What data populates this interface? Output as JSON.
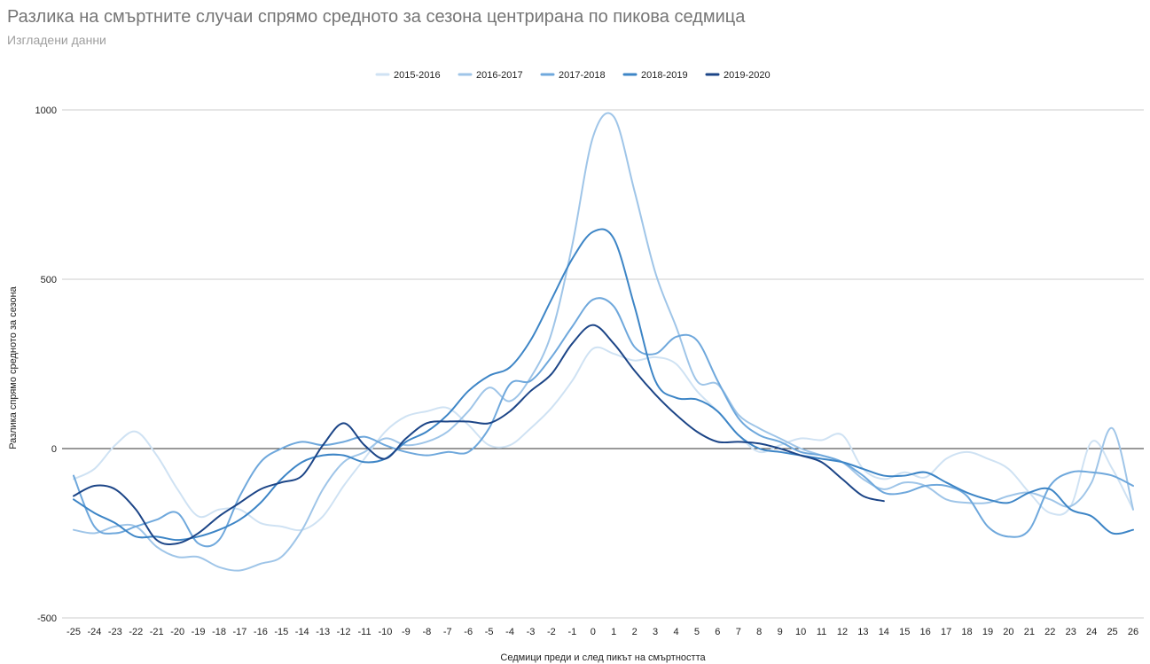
{
  "chart_data": {
    "type": "line",
    "title": "Разлика на смъртните случаи спрямо средното за сезона центрирана по пикова седмица",
    "subtitle": "Изгладени данни",
    "xlabel": "Седмици преди и след пикът на смъртността",
    "ylabel": "Разлика спрямо средното за сезона",
    "ylim": [
      -500,
      1000
    ],
    "yticks": [
      -500,
      0,
      500,
      1000
    ],
    "legend_position": "top",
    "smooth": true,
    "grid": true,
    "categories": [
      "-25",
      "-24",
      "-23",
      "-22",
      "-21",
      "-20",
      "-19",
      "-18",
      "-17",
      "-16",
      "-15",
      "-14",
      "-13",
      "-12",
      "-11",
      "-10",
      "-9",
      "-8",
      "-7",
      "-6",
      "-5",
      "-4",
      "-3",
      "-2",
      "-1",
      "0",
      "1",
      "2",
      "3",
      "4",
      "5",
      "6",
      "7",
      "8",
      "9",
      "10",
      "11",
      "12",
      "13",
      "14",
      "15",
      "16",
      "17",
      "18",
      "19",
      "20",
      "21",
      "22",
      "23",
      "24",
      "25",
      "26"
    ],
    "series": [
      {
        "name": "2015-2016",
        "color": "#cfe2f3",
        "values": [
          -90,
          -60,
          10,
          50,
          -20,
          -120,
          -200,
          -180,
          -180,
          -220,
          -230,
          -240,
          -200,
          -110,
          -30,
          50,
          95,
          110,
          120,
          70,
          10,
          10,
          60,
          120,
          200,
          295,
          280,
          260,
          270,
          250,
          170,
          110,
          40,
          -10,
          10,
          30,
          25,
          40,
          -60,
          -90,
          -70,
          -85,
          -30,
          -10,
          -30,
          -60,
          -130,
          -190,
          -170,
          20,
          -60,
          -180
        ]
      },
      {
        "name": "2016-2017",
        "color": "#9fc5e8",
        "values": [
          -240,
          -250,
          -230,
          -230,
          -290,
          -320,
          -320,
          -350,
          -360,
          -340,
          -320,
          -240,
          -120,
          -40,
          -10,
          30,
          10,
          20,
          50,
          110,
          180,
          140,
          210,
          340,
          600,
          920,
          980,
          760,
          520,
          360,
          200,
          190,
          100,
          60,
          30,
          0,
          -20,
          -40,
          -90,
          -120,
          -100,
          -110,
          -150,
          -160,
          -160,
          -140,
          -130,
          -150,
          -170,
          -100,
          60,
          -180
        ]
      },
      {
        "name": "2017-2018",
        "color": "#6fa8dc",
        "values": [
          -80,
          -230,
          -250,
          -230,
          -210,
          -190,
          -280,
          -270,
          -140,
          -40,
          0,
          20,
          10,
          20,
          35,
          10,
          -10,
          -20,
          -10,
          -10,
          60,
          190,
          200,
          270,
          360,
          440,
          420,
          300,
          280,
          330,
          320,
          200,
          90,
          40,
          20,
          -10,
          -20,
          -40,
          -80,
          -130,
          -130,
          -110,
          -110,
          -140,
          -230,
          -260,
          -240,
          -110,
          -70,
          -70,
          -80,
          -110
        ]
      },
      {
        "name": "2018-2019",
        "color": "#3d85c6",
        "values": [
          -150,
          -190,
          -220,
          -260,
          -260,
          -270,
          -260,
          -240,
          -210,
          -160,
          -90,
          -40,
          -20,
          -20,
          -40,
          -30,
          20,
          50,
          100,
          170,
          215,
          240,
          320,
          440,
          560,
          640,
          620,
          420,
          200,
          150,
          145,
          110,
          40,
          0,
          -10,
          -20,
          -30,
          -40,
          -60,
          -80,
          -80,
          -70,
          -100,
          -130,
          -150,
          -160,
          -130,
          -120,
          -180,
          -200,
          -250,
          -240
        ]
      },
      {
        "name": "2019-2020",
        "color": "#1c4587",
        "values": [
          -140,
          -110,
          -120,
          -180,
          -270,
          -280,
          -250,
          -200,
          -160,
          -120,
          -100,
          -80,
          10,
          75,
          10,
          -30,
          30,
          75,
          80,
          80,
          75,
          110,
          170,
          220,
          310,
          365,
          310,
          230,
          160,
          100,
          50,
          20,
          20,
          15,
          0,
          -20,
          -40,
          -90,
          -140,
          -155,
          null,
          null,
          null,
          null,
          null,
          null,
          null,
          null,
          null,
          null,
          null,
          null
        ]
      }
    ]
  }
}
